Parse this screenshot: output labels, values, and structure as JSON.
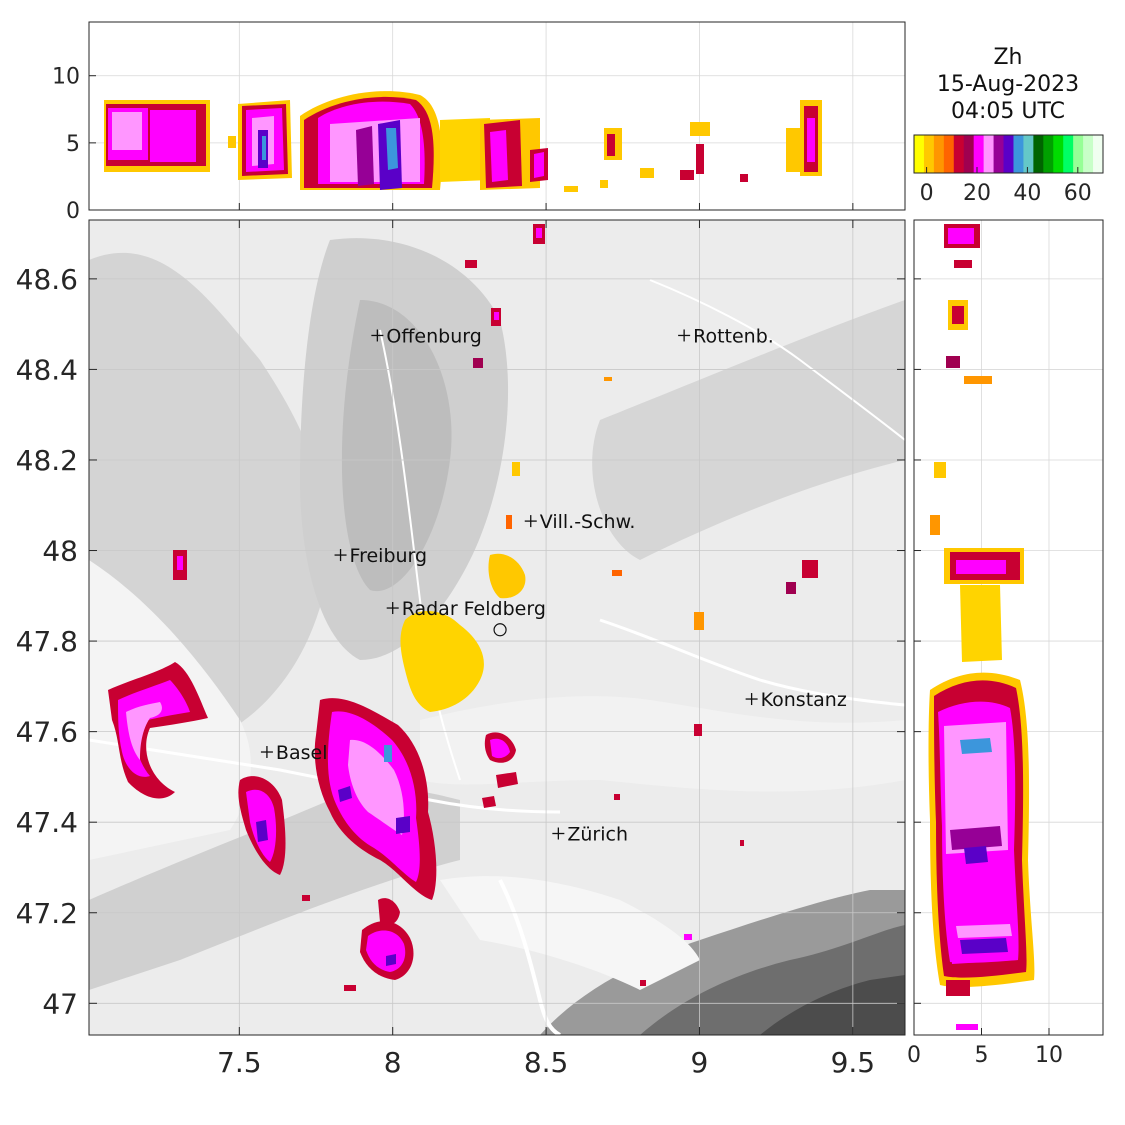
{
  "title": {
    "variable": "Zh",
    "date": "15-Aug-2023",
    "time": "04:05 UTC"
  },
  "map": {
    "x_ticks": [
      "7.5",
      "8",
      "8.5",
      "9",
      "9.5"
    ],
    "x_tick_values": [
      7.5,
      8.0,
      8.5,
      9.0,
      9.5
    ],
    "y_ticks": [
      "48.6",
      "48.4",
      "48.2",
      "48",
      "47.8",
      "47.6",
      "47.4",
      "47.2",
      "47"
    ],
    "y_tick_values": [
      48.6,
      48.4,
      48.2,
      48.0,
      47.8,
      47.6,
      47.4,
      47.2,
      47.0
    ],
    "lon_range": [
      7.01,
      9.67
    ],
    "lat_range": [
      46.93,
      48.73
    ],
    "cities": [
      {
        "name": "Offenburg",
        "lon": 7.95,
        "lat": 48.475
      },
      {
        "name": "Rottenb.",
        "lon": 8.95,
        "lat": 48.475
      },
      {
        "name": "Vill.-Schw.",
        "lon": 8.45,
        "lat": 48.065
      },
      {
        "name": "Freiburg",
        "lon": 7.83,
        "lat": 47.99
      },
      {
        "name": "Radar Feldberg",
        "lon": 8.0,
        "lat": 47.873
      },
      {
        "name": "Konstanz",
        "lon": 9.17,
        "lat": 47.672
      },
      {
        "name": "Basel",
        "lon": 7.59,
        "lat": 47.555
      },
      {
        "name": "Zürich",
        "lon": 8.54,
        "lat": 47.375
      }
    ],
    "radar_site": {
      "lon": 8.35,
      "lat": 47.825
    }
  },
  "top_panel": {
    "y_ticks": [
      "0",
      "5",
      "10"
    ],
    "y_tick_values": [
      0,
      5,
      10
    ],
    "height_range": [
      0,
      14
    ]
  },
  "side_panel": {
    "x_ticks": [
      "0",
      "5",
      "10"
    ],
    "x_tick_values": [
      0,
      5,
      10
    ],
    "height_range": [
      0,
      14
    ]
  },
  "colorbar": {
    "ticks": [
      "0",
      "20",
      "40",
      "60"
    ],
    "tick_values": [
      0,
      20,
      40,
      60
    ],
    "range": [
      -5,
      70
    ],
    "colors": [
      "#ffff00",
      "#ffc800",
      "#ff9600",
      "#ff6400",
      "#c80032",
      "#a00050",
      "#ff00ff",
      "#ff96ff",
      "#960096",
      "#5a00c8",
      "#3c96dc",
      "#64c8c8",
      "#006400",
      "#00a000",
      "#00dc00",
      "#00ff64",
      "#96ff96",
      "#c8ffc8",
      "#f0fff0"
    ]
  }
}
